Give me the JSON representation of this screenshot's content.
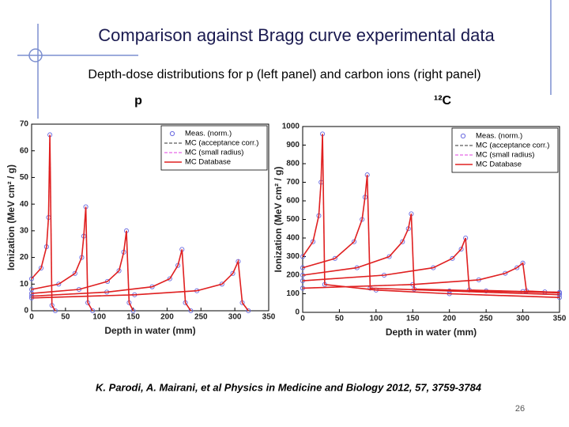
{
  "slide": {
    "title": "Comparison against Bragg curve experimental data",
    "subtitle": "Depth-dose distributions for p (left panel) and carbon ions (right panel)",
    "citation": "K. Parodi, A. Mairani,  et al Physics in Medicine and Biology  2012, 57, 3759-3784",
    "page_number": "26"
  },
  "chart_data": [
    {
      "type": "line",
      "title": "p",
      "xlabel": "Depth in water (mm)",
      "ylabel": "Ionization (MeV cm² / g)",
      "xlim": [
        0,
        350
      ],
      "xticks": [
        0,
        50,
        100,
        150,
        200,
        250,
        300,
        350
      ],
      "ylim": [
        0,
        70
      ],
      "yticks": [
        0,
        10,
        20,
        30,
        40,
        50,
        60,
        70
      ],
      "legend": "upper right",
      "series": [
        {
          "name": "Meas. (norm.)",
          "color": "#6a6ae0",
          "style": "markers",
          "x": [
            0,
            14,
            22,
            25,
            27,
            30,
            35,
            null,
            0,
            40,
            64,
            74,
            77,
            80,
            83,
            90,
            null,
            0,
            70,
            112,
            129,
            136,
            140,
            144,
            150,
            null,
            0,
            111,
            178,
            204,
            216,
            222,
            227,
            235,
            null,
            0,
            152,
            244,
            281,
            297,
            305,
            311,
            320
          ],
          "values": [
            12,
            16,
            24,
            35,
            66,
            2,
            0,
            null,
            8,
            10,
            14,
            20,
            28,
            39,
            3,
            0,
            null,
            6.5,
            8,
            11,
            15,
            22,
            30,
            3,
            0,
            null,
            5.5,
            7,
            9,
            12,
            17,
            23,
            3,
            0,
            null,
            4.8,
            6,
            7.5,
            10,
            14,
            18.5,
            3,
            0
          ]
        },
        {
          "name": "MC (acceptance corr.)",
          "color": "#333333",
          "style": "dashed",
          "x": [
            0,
            14,
            22,
            25,
            27,
            30,
            35,
            null,
            0,
            40,
            64,
            74,
            77,
            80,
            83,
            90,
            null,
            0,
            70,
            112,
            129,
            136,
            140,
            144,
            150,
            null,
            0,
            111,
            178,
            204,
            216,
            222,
            227,
            235,
            null,
            0,
            152,
            244,
            281,
            297,
            305,
            311,
            320
          ],
          "values": [
            12,
            16,
            24,
            35,
            66,
            2,
            0,
            null,
            8,
            10,
            14,
            20,
            28,
            39,
            3,
            0,
            null,
            6.5,
            8,
            11,
            15,
            22,
            30,
            3,
            0,
            null,
            5.5,
            7,
            9,
            12,
            17,
            23,
            3,
            0,
            null,
            4.8,
            6,
            7.5,
            10,
            14,
            18.5,
            3,
            0
          ]
        },
        {
          "name": "MC (small radius)",
          "color": "#e040e0",
          "style": "dashed",
          "x": [
            0,
            14,
            22,
            25,
            27,
            30,
            35,
            null,
            0,
            40,
            64,
            74,
            77,
            80,
            83,
            90,
            null,
            0,
            70,
            112,
            129,
            136,
            140,
            144,
            150,
            null,
            0,
            111,
            178,
            204,
            216,
            222,
            227,
            235,
            null,
            0,
            152,
            244,
            281,
            297,
            305,
            311,
            320
          ],
          "values": [
            12,
            16,
            24,
            35,
            66,
            2,
            0,
            null,
            8,
            10,
            14,
            20,
            28,
            39,
            3,
            0,
            null,
            6.5,
            8,
            11,
            15,
            22,
            30,
            3,
            0,
            null,
            5.5,
            7,
            9,
            12,
            17,
            23,
            3,
            0,
            null,
            4.8,
            6,
            7.5,
            10,
            14,
            18.5,
            3,
            0
          ]
        },
        {
          "name": "MC Database",
          "color": "#e02020",
          "style": "solid",
          "x": [
            0,
            14,
            22,
            25,
            27,
            30,
            35,
            null,
            0,
            40,
            64,
            74,
            77,
            80,
            83,
            90,
            null,
            0,
            70,
            112,
            129,
            136,
            140,
            144,
            150,
            null,
            0,
            111,
            178,
            204,
            216,
            222,
            227,
            235,
            null,
            0,
            152,
            244,
            281,
            297,
            305,
            311,
            320
          ],
          "values": [
            12,
            16,
            24,
            35,
            66,
            2,
            0,
            null,
            8,
            10,
            14,
            20,
            28,
            39,
            3,
            0,
            null,
            6.5,
            8,
            11,
            15,
            22,
            30,
            3,
            0,
            null,
            5.5,
            7,
            9,
            12,
            17,
            23,
            3,
            0,
            null,
            4.8,
            6,
            7.5,
            10,
            14,
            18.5,
            3,
            0
          ]
        }
      ]
    },
    {
      "type": "line",
      "title": "¹²C",
      "xlabel": "Depth in water (mm)",
      "ylabel": "Ionization (MeV cm² / g)",
      "xlim": [
        0,
        350
      ],
      "xticks": [
        0,
        50,
        100,
        150,
        200,
        250,
        300,
        350
      ],
      "ylim": [
        0,
        1000
      ],
      "yticks": [
        0,
        100,
        200,
        300,
        400,
        500,
        600,
        700,
        800,
        900,
        1000
      ],
      "legend": "upper right",
      "series": [
        {
          "name": "Meas. (norm.)",
          "color": "#6a6ae0",
          "style": "markers",
          "x": [
            0,
            14,
            22,
            25,
            27,
            30,
            100,
            200,
            350,
            null,
            0,
            44,
            70,
            81,
            85,
            88,
            92,
            200,
            350,
            null,
            0,
            74,
            118,
            136,
            144,
            148,
            152,
            250,
            350,
            null,
            0,
            111,
            178,
            204,
            216,
            222,
            227,
            300,
            350,
            null,
            0,
            150,
            240,
            276,
            292,
            300,
            305,
            330,
            350
          ],
          "values": [
            300,
            380,
            520,
            700,
            960,
            150,
            120,
            100,
            80,
            null,
            240,
            290,
            380,
            500,
            620,
            740,
            130,
            115,
            95,
            null,
            200,
            240,
            300,
            380,
            450,
            530,
            125,
            115,
            105,
            null,
            170,
            200,
            240,
            290,
            340,
            400,
            120,
            112,
            108,
            null,
            130,
            150,
            175,
            210,
            240,
            265,
            115,
            110,
            105
          ]
        },
        {
          "name": "MC (acceptance corr.)",
          "color": "#333333",
          "style": "dashed",
          "x": [
            0,
            14,
            22,
            25,
            27,
            30,
            100,
            200,
            350,
            null,
            0,
            44,
            70,
            81,
            85,
            88,
            92,
            200,
            350,
            null,
            0,
            74,
            118,
            136,
            144,
            148,
            152,
            250,
            350,
            null,
            0,
            111,
            178,
            204,
            216,
            222,
            227,
            300,
            350,
            null,
            0,
            150,
            240,
            276,
            292,
            300,
            305,
            330,
            350
          ],
          "values": [
            300,
            380,
            520,
            700,
            960,
            150,
            120,
            100,
            80,
            null,
            240,
            290,
            380,
            500,
            620,
            740,
            130,
            115,
            95,
            null,
            200,
            240,
            300,
            380,
            450,
            530,
            125,
            115,
            105,
            null,
            170,
            200,
            240,
            290,
            340,
            400,
            120,
            112,
            108,
            null,
            130,
            150,
            175,
            210,
            240,
            265,
            115,
            110,
            105
          ]
        },
        {
          "name": "MC (small radius)",
          "color": "#e040e0",
          "style": "dashed",
          "x": [
            0,
            14,
            22,
            25,
            27,
            30,
            100,
            200,
            350,
            null,
            0,
            44,
            70,
            81,
            85,
            88,
            92,
            200,
            350,
            null,
            0,
            74,
            118,
            136,
            144,
            148,
            152,
            250,
            350,
            null,
            0,
            111,
            178,
            204,
            216,
            222,
            227,
            300,
            350,
            null,
            0,
            150,
            240,
            276,
            292,
            300,
            305,
            330,
            350
          ],
          "values": [
            300,
            380,
            520,
            700,
            960,
            150,
            120,
            100,
            80,
            null,
            240,
            290,
            380,
            500,
            620,
            740,
            130,
            115,
            95,
            null,
            200,
            240,
            300,
            380,
            450,
            530,
            125,
            115,
            105,
            null,
            170,
            200,
            240,
            290,
            340,
            400,
            120,
            112,
            108,
            null,
            130,
            150,
            175,
            210,
            240,
            265,
            115,
            110,
            105
          ]
        },
        {
          "name": "MC Database",
          "color": "#e02020",
          "style": "solid",
          "x": [
            0,
            14,
            22,
            25,
            27,
            30,
            100,
            200,
            350,
            null,
            0,
            44,
            70,
            81,
            85,
            88,
            92,
            200,
            350,
            null,
            0,
            74,
            118,
            136,
            144,
            148,
            152,
            250,
            350,
            null,
            0,
            111,
            178,
            204,
            216,
            222,
            227,
            300,
            350,
            null,
            0,
            150,
            240,
            276,
            292,
            300,
            305,
            330,
            350
          ],
          "values": [
            300,
            380,
            520,
            700,
            960,
            150,
            120,
            100,
            80,
            null,
            240,
            290,
            380,
            500,
            620,
            740,
            130,
            115,
            95,
            null,
            200,
            240,
            300,
            380,
            450,
            530,
            125,
            115,
            105,
            null,
            170,
            200,
            240,
            290,
            340,
            400,
            120,
            112,
            108,
            null,
            130,
            150,
            175,
            210,
            240,
            265,
            115,
            110,
            105
          ]
        }
      ]
    }
  ]
}
